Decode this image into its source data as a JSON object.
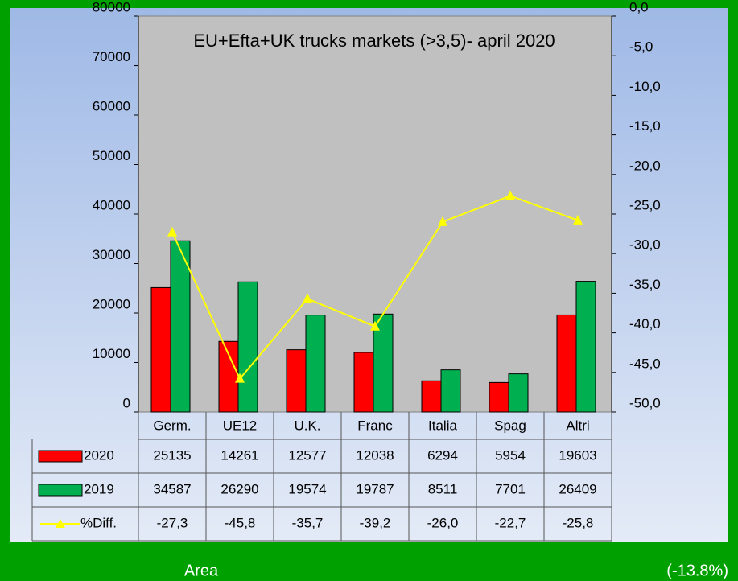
{
  "chart_data": {
    "type": "bar",
    "title": "EU+Efta+UK trucks markets (>3,5)- april 2020",
    "categories": [
      "Germ.",
      "UE12",
      "U.K.",
      "Franc",
      "Italia",
      "Spag",
      "Altri"
    ],
    "series": [
      {
        "name": "2020",
        "color": "#ff0000",
        "values": [
          25135,
          14261,
          12577,
          12038,
          6294,
          5954,
          19603
        ]
      },
      {
        "name": "2019",
        "color": "#00b050",
        "values": [
          34587,
          26290,
          19574,
          19787,
          8511,
          7701,
          26409
        ]
      },
      {
        "name": "%Diff.",
        "color": "#ffff00",
        "axis": "y2",
        "type": "line",
        "values": [
          -27.3,
          -45.8,
          -35.7,
          -39.2,
          -26.0,
          -22.7,
          -25.8
        ],
        "value_labels": [
          "-27,3",
          "-45,8",
          "-35,7",
          "-39,2",
          "-26,0",
          "-22,7",
          "-25,8"
        ]
      }
    ],
    "ylim": [
      0,
      80000
    ],
    "yticks": [
      0,
      10000,
      20000,
      30000,
      40000,
      50000,
      60000,
      70000,
      80000
    ],
    "y2lim": [
      -50,
      0
    ],
    "y2ticks": [
      {
        "value": 0,
        "label": "0,0"
      },
      {
        "value": -5,
        "label": "-5,0"
      },
      {
        "value": -10,
        "label": "-10,0"
      },
      {
        "value": -15,
        "label": "-15,0"
      },
      {
        "value": -20,
        "label": "-20,0"
      },
      {
        "value": -25,
        "label": "-25,0"
      },
      {
        "value": -30,
        "label": "-30,0"
      },
      {
        "value": -35,
        "label": "-35,0"
      },
      {
        "value": -40,
        "label": "-40,0"
      },
      {
        "value": -45,
        "label": "-45,0"
      },
      {
        "value": -50,
        "label": "-50,0"
      }
    ],
    "footer_left": "Area",
    "footer_right": "(-13.8%)"
  }
}
